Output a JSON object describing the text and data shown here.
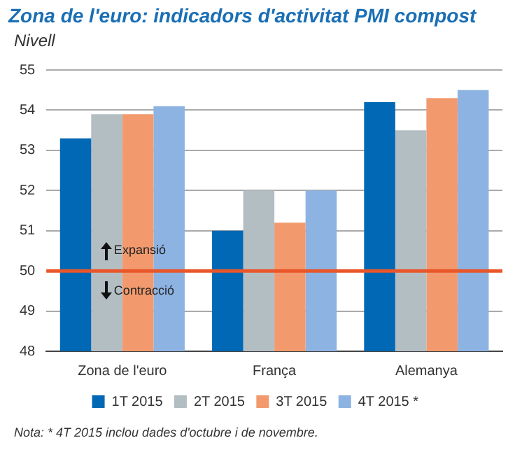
{
  "chart_data": {
    "type": "bar",
    "title": "Zona de l'euro: indicadors d'activitat PMI compost",
    "ylabel": "Nivell",
    "categories": [
      "Zona de l'euro",
      "França",
      "Alemanya"
    ],
    "series": [
      {
        "name": "1T 2015",
        "color": "#0068b4",
        "values": [
          53.3,
          51.0,
          54.2
        ]
      },
      {
        "name": "2T 2015",
        "color": "#b3bec3",
        "values": [
          53.9,
          52.0,
          53.5
        ]
      },
      {
        "name": "3T 2015",
        "color": "#f29a6e",
        "values": [
          53.9,
          51.2,
          54.3
        ]
      },
      {
        "name": "4T 2015 *",
        "color": "#8db3e2",
        "values": [
          54.1,
          52.0,
          54.5
        ]
      }
    ],
    "ylim": [
      48,
      55
    ],
    "yticks": [
      48,
      49,
      50,
      51,
      52,
      53,
      54,
      55
    ],
    "grid": "y",
    "legend": "bottom",
    "ref_lines": [
      {
        "axis": "y",
        "value": 50,
        "color": "#e8562a"
      }
    ],
    "annotations": [
      {
        "text": "Expansió",
        "x": "Zona de l'euro",
        "y": 50.5
      },
      {
        "text": "Contracció",
        "x": "Zona de l'euro",
        "y": 49.5
      },
      "Nota: * 4T 2015 inclou dades d'octubre i de novembre."
    ]
  }
}
